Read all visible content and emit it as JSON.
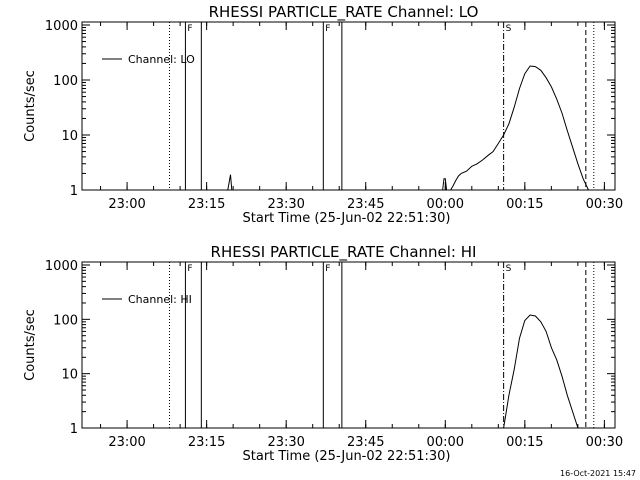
{
  "chart_data": [
    {
      "type": "line",
      "title": "RHESSI PARTICLE_RATE Channel: LO",
      "xlabel": "Start Time (25-Jun-02 22:51:30)",
      "ylabel": "Counts/sec",
      "yscale": "log",
      "ylim": [
        1,
        1000
      ],
      "yticks": [
        "1",
        "10",
        "100",
        "1000"
      ],
      "xlim": [
        "22:51:30",
        "00:32:00"
      ],
      "xticks": [
        "23:00",
        "23:15",
        "23:30",
        "23:45",
        "00:00",
        "00:15",
        "00:30"
      ],
      "legend": {
        "position": "top-left",
        "label": "Channel: LO"
      },
      "series": [
        {
          "name": "Channel: LO",
          "points": [
            [
              "23:19:00",
              1
            ],
            [
              "23:19:15",
              1.4
            ],
            [
              "23:19:30",
              1.9
            ],
            [
              "23:19:45",
              1
            ],
            [
              "23:59:30",
              1
            ],
            [
              "23:59:45",
              1.6
            ],
            [
              "00:00:00",
              1.6
            ],
            [
              "00:00:15",
              1
            ],
            [
              "00:01:00",
              1
            ],
            [
              "00:01:30",
              1.2
            ],
            [
              "00:02:00",
              1.5
            ],
            [
              "00:02:30",
              1.8
            ],
            [
              "00:03:00",
              2
            ],
            [
              "00:04:00",
              2.2
            ],
            [
              "00:05:00",
              2.7
            ],
            [
              "00:06:00",
              3
            ],
            [
              "00:07:00",
              3.5
            ],
            [
              "00:08:00",
              4.2
            ],
            [
              "00:09:00",
              5
            ],
            [
              "00:10:00",
              7
            ],
            [
              "00:11:00",
              10
            ],
            [
              "00:12:00",
              16
            ],
            [
              "00:13:00",
              32
            ],
            [
              "00:14:00",
              70
            ],
            [
              "00:15:00",
              130
            ],
            [
              "00:16:00",
              180
            ],
            [
              "00:17:00",
              175
            ],
            [
              "00:18:00",
              150
            ],
            [
              "00:19:00",
              110
            ],
            [
              "00:20:00",
              75
            ],
            [
              "00:21:00",
              45
            ],
            [
              "00:22:00",
              25
            ],
            [
              "00:23:00",
              12
            ],
            [
              "00:24:00",
              6
            ],
            [
              "00:25:00",
              3
            ],
            [
              "00:26:00",
              1.6
            ],
            [
              "00:27:00",
              1
            ]
          ]
        }
      ],
      "markers": [
        {
          "time": "23:08:00",
          "style": "dotted",
          "label": ""
        },
        {
          "time": "23:11:00",
          "style": "solid",
          "label": "F"
        },
        {
          "time": "23:14:00",
          "style": "solid",
          "label": ""
        },
        {
          "time": "23:37:00",
          "style": "solid",
          "label": "F"
        },
        {
          "time": "23:40:30",
          "style": "solid",
          "label": ""
        },
        {
          "time": "00:11:00",
          "style": "dashdot",
          "label": "S"
        },
        {
          "time": "00:26:30",
          "style": "dashed",
          "label": ""
        },
        {
          "time": "00:28:00",
          "style": "dotted",
          "label": ""
        }
      ]
    },
    {
      "type": "line",
      "title": "RHESSI PARTICLE_RATE Channel: HI",
      "xlabel": "Start Time (25-Jun-02 22:51:30)",
      "ylabel": "Counts/sec",
      "yscale": "log",
      "ylim": [
        1,
        1000
      ],
      "yticks": [
        "1",
        "10",
        "100",
        "1000"
      ],
      "xlim": [
        "22:51:30",
        "00:32:00"
      ],
      "xticks": [
        "23:00",
        "23:15",
        "23:30",
        "23:45",
        "00:00",
        "00:15",
        "00:30"
      ],
      "legend": {
        "position": "top-left",
        "label": "Channel: HI"
      },
      "series": [
        {
          "name": "Channel: HI",
          "points": [
            [
              "00:11:00",
              1
            ],
            [
              "00:11:30",
              2
            ],
            [
              "00:12:00",
              4
            ],
            [
              "00:13:00",
              12
            ],
            [
              "00:14:00",
              45
            ],
            [
              "00:15:00",
              95
            ],
            [
              "00:16:00",
              120
            ],
            [
              "00:17:00",
              115
            ],
            [
              "00:18:00",
              90
            ],
            [
              "00:19:00",
              60
            ],
            [
              "00:20:00",
              30
            ],
            [
              "00:21:00",
              18
            ],
            [
              "00:22:00",
              9
            ],
            [
              "00:23:00",
              4
            ],
            [
              "00:24:00",
              2
            ],
            [
              "00:25:00",
              1
            ]
          ]
        }
      ],
      "markers": [
        {
          "time": "23:08:00",
          "style": "dotted",
          "label": ""
        },
        {
          "time": "23:11:00",
          "style": "solid",
          "label": "F"
        },
        {
          "time": "23:14:00",
          "style": "solid",
          "label": ""
        },
        {
          "time": "23:37:00",
          "style": "solid",
          "label": "F"
        },
        {
          "time": "23:40:30",
          "style": "solid",
          "label": ""
        },
        {
          "time": "00:11:00",
          "style": "dashdot",
          "label": "S"
        },
        {
          "time": "00:26:30",
          "style": "dashed",
          "label": ""
        },
        {
          "time": "00:28:00",
          "style": "dotted",
          "label": ""
        }
      ]
    }
  ],
  "footer": {
    "timestamp": "16-Oct-2021 15:47"
  }
}
